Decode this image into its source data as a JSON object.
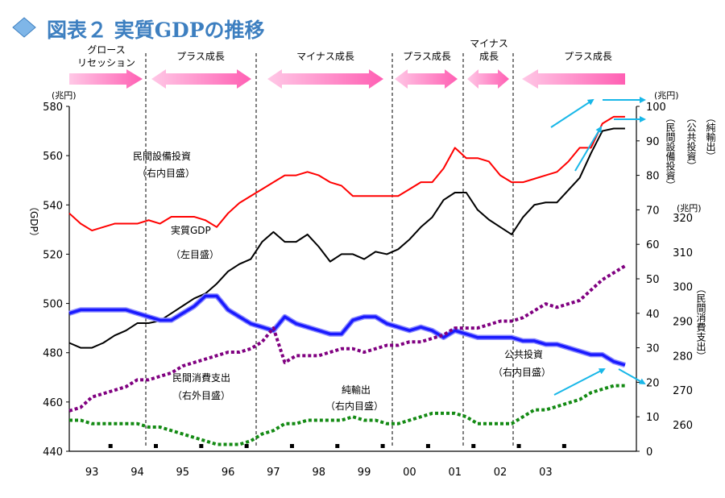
{
  "title": "図表２ 実質GDPの推移",
  "phases": [
    "グロース",
    "リセッション",
    "プラス成長",
    "マイナス成長",
    "プラス成長",
    "マイナス",
    "成長",
    "プラス成長"
  ],
  "units": {
    "left": "(兆円)",
    "right_top": "(兆円)",
    "right_mid": "(兆円)"
  },
  "axis_labels": {
    "left": "（GDP）",
    "capex": "（民間設備投資）",
    "public": "（公共投資）",
    "netexport": "（純輸出）",
    "consumption": "（民間消費支出）"
  },
  "series_labels": [
    {
      "key": "capex1",
      "text": "民間設備投資"
    },
    {
      "key": "capex2",
      "text": "（右内目盛）"
    },
    {
      "key": "gdp1",
      "text": "実質GDP"
    },
    {
      "key": "gdp2",
      "text": "（左目盛）"
    },
    {
      "key": "cons1",
      "text": "民間消費支出"
    },
    {
      "key": "cons2",
      "text": "（右外目盛）"
    },
    {
      "key": "net1",
      "text": "純輸出"
    },
    {
      "key": "net2",
      "text": "（右内目盛）"
    },
    {
      "key": "pub1",
      "text": "公共投資"
    },
    {
      "key": "pub2",
      "text": "（右内目盛）"
    }
  ],
  "colors": {
    "gdp": "#000000",
    "capex": "#ff0000",
    "public": "#1a1aff",
    "consumption": "#800080",
    "netexport": "#138a13",
    "arrow_pink": "#ff77c0",
    "arrow_cyan": "#18b7e8",
    "title": "#3d7fc0"
  },
  "chart_data": {
    "type": "line",
    "x_label_ticks": [
      "93",
      "94",
      "95",
      "96",
      "97",
      "98",
      "99",
      "00",
      "01",
      "02",
      "03"
    ],
    "y_left": {
      "range": [
        440,
        580
      ],
      "ticks": [
        440,
        460,
        480,
        500,
        520,
        540,
        560,
        580
      ]
    },
    "y_right_inner": {
      "range": [
        0,
        100
      ],
      "ticks": [
        0,
        10,
        20,
        30,
        40,
        50,
        60,
        70,
        80,
        90,
        100
      ]
    },
    "y_right_outer": {
      "range": [
        260,
        320
      ],
      "ticks": [
        260,
        270,
        280,
        290,
        300,
        310,
        320
      ]
    },
    "quarters_start": 1993.0,
    "quarter_step": 0.25,
    "series": [
      {
        "key": "gdp",
        "axis": "left",
        "values": [
          484,
          482,
          482,
          484,
          487,
          489,
          492,
          492,
          493,
          496,
          499,
          502,
          504,
          508,
          513,
          516,
          518,
          525,
          529,
          525,
          525,
          528,
          523,
          517,
          520,
          520,
          518,
          521,
          520,
          522,
          526,
          531,
          535,
          542,
          545,
          545,
          538,
          534,
          531,
          528,
          535,
          540,
          541,
          541,
          546,
          551,
          561,
          570,
          571,
          571
        ]
      },
      {
        "key": "capex",
        "axis": "right_inner",
        "values": [
          69,
          66,
          64,
          65,
          66,
          66,
          66,
          67,
          66,
          68,
          68,
          68,
          67,
          65,
          69,
          72,
          74,
          76,
          78,
          80,
          80,
          81,
          80,
          78,
          77,
          74,
          74,
          74,
          74,
          74,
          76,
          78,
          78,
          82,
          88,
          85,
          85,
          84,
          80,
          78,
          78,
          79,
          80,
          81,
          84,
          88,
          88,
          95,
          97,
          97
        ]
      },
      {
        "key": "public",
        "axis": "right_inner",
        "values": [
          40,
          41,
          41,
          41,
          41,
          41,
          40,
          39,
          38,
          38,
          40,
          42,
          45,
          45,
          41,
          39,
          37,
          36,
          35,
          39,
          37,
          36,
          35,
          34,
          34,
          38,
          39,
          39,
          37,
          36,
          35,
          36,
          35,
          33,
          35,
          34,
          33,
          33,
          33,
          33,
          32,
          32,
          31,
          31,
          30,
          29,
          28,
          28,
          26,
          25
        ]
      },
      {
        "key": "netexport",
        "axis": "right_inner",
        "values": [
          9,
          9,
          8,
          8,
          8,
          8,
          8,
          7,
          7,
          6,
          5,
          4,
          3,
          2,
          2,
          2,
          3,
          5,
          6,
          8,
          8,
          9,
          9,
          9,
          9,
          10,
          9,
          9,
          8,
          8,
          9,
          10,
          11,
          11,
          11,
          10,
          8,
          8,
          8,
          8,
          10,
          12,
          12,
          13,
          14,
          15,
          17,
          18,
          19,
          19
        ]
      },
      {
        "key": "consumption",
        "axis": "right_outer",
        "values": [
          264,
          265,
          268,
          269,
          270,
          271,
          273,
          273,
          274,
          275,
          277,
          278,
          279,
          280,
          281,
          281,
          282,
          284,
          288,
          278,
          280,
          280,
          280,
          281,
          282,
          282,
          281,
          282,
          283,
          283,
          284,
          284,
          285,
          286,
          288,
          288,
          288,
          289,
          290,
          290,
          291,
          293,
          295,
          294,
          295,
          296,
          299,
          302,
          304,
          306
        ]
      }
    ]
  }
}
